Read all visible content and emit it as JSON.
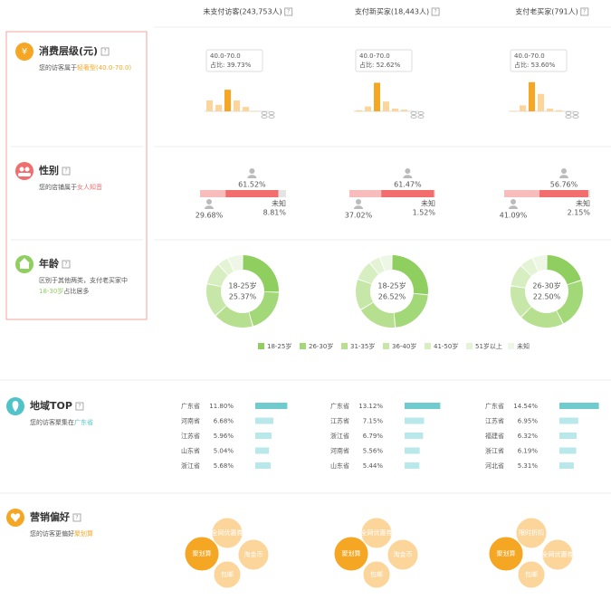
{
  "columns": [
    "未支付访客(243,753人)",
    "支付新买家(18,443人)",
    "支付老买家(791人)"
  ],
  "help": "?",
  "consumption": {
    "icon": "¥",
    "title": "消费层级(元)",
    "desc": "您的访客属于",
    "highlight": "轻奢型(40.0-70.0)",
    "columns": [
      {
        "tooltip_range": "40.0-70.0",
        "tooltip_share": "占比: 39.73%",
        "bars": [
          20,
          12,
          39.73,
          20,
          8,
          1
        ],
        "colors": [
          "#fcd59a",
          "#fcd59a",
          "#f5a623",
          "#fcd59a",
          "#fcd59a",
          "#fcd59a"
        ]
      },
      {
        "tooltip_range": "40.0-70.0",
        "tooltip_share": "占比: 52.62%",
        "bars": [
          2,
          9,
          52.62,
          18,
          5,
          3
        ],
        "colors": [
          "#fcd59a",
          "#fcd59a",
          "#f5a623",
          "#fcd59a",
          "#fcd59a",
          "#fcd59a"
        ]
      },
      {
        "tooltip_range": "40.0-70.0",
        "tooltip_share": "占比: 53.60%",
        "bars": [
          1,
          11,
          53.6,
          32,
          5,
          2
        ],
        "colors": [
          "#fcd59a",
          "#fcd59a",
          "#f5a623",
          "#fcd59a",
          "#fcd59a",
          "#fcd59a"
        ]
      }
    ]
  },
  "gender": {
    "title": "性别",
    "desc": "您的店铺属于",
    "highlight": "女人知音",
    "unknown_label": "未知",
    "columns": [
      {
        "values": [
          29.68,
          61.52,
          8.81
        ],
        "value_labels": [
          "29.68%",
          "61.52%",
          "8.81%"
        ]
      },
      {
        "values": [
          37.02,
          61.47,
          1.52
        ],
        "value_labels": [
          "37.02%",
          "61.47%",
          "1.52%"
        ]
      },
      {
        "values": [
          41.09,
          56.76,
          2.15
        ],
        "value_labels": [
          "41.09%",
          "56.76%",
          "2.15%"
        ]
      }
    ],
    "colors": [
      "#f9bcbc",
      "#f26d6d",
      "#e4e4e4"
    ]
  },
  "age": {
    "title": "年龄",
    "desc": "区别于其他两类，支付老买家中",
    "highlight": "18-30岁",
    "desc_end": "占比居多",
    "legend": [
      "18-25岁",
      "26-30岁",
      "31-35岁",
      "36-40岁",
      "41-50岁",
      "51岁以上",
      "未知"
    ],
    "colors": [
      "#8fcf5f",
      "#a3d878",
      "#b6e08f",
      "#c6e7a8",
      "#d6eec0",
      "#e3f3d4",
      "#eef7e6"
    ],
    "columns": [
      {
        "center_label": "18-25岁",
        "center_value": "25.37%",
        "values": [
          25.37,
          20,
          18,
          15,
          10,
          5,
          6.63
        ]
      },
      {
        "center_label": "18-25岁",
        "center_value": "26.52%",
        "values": [
          26.52,
          22,
          18,
          14,
          9,
          5,
          5.48
        ]
      },
      {
        "center_label": "26-30岁",
        "center_value": "22.50%",
        "values": [
          20,
          22.5,
          20,
          15,
          10,
          6,
          6.5
        ]
      }
    ]
  },
  "region": {
    "title": "地域TOP",
    "desc": "您的访客聚集在",
    "highlight": "广东省",
    "columns": [
      {
        "provinces": [
          "广东省",
          "河南省",
          "江苏省",
          "山东省",
          "浙江省"
        ],
        "values": [
          11.8,
          6.68,
          5.96,
          5.04,
          5.68
        ],
        "value_labels": [
          "11.80%",
          "6.68%",
          "5.96%",
          "5.04%",
          "5.68%"
        ]
      },
      {
        "provinces": [
          "广东省",
          "江苏省",
          "浙江省",
          "河南省",
          "山东省"
        ],
        "values": [
          13.12,
          7.15,
          6.79,
          5.56,
          5.44
        ],
        "value_labels": [
          "13.12%",
          "7.15%",
          "6.79%",
          "5.56%",
          "5.44%"
        ]
      },
      {
        "provinces": [
          "广东省",
          "江苏省",
          "福建省",
          "浙江省",
          "河北省"
        ],
        "values": [
          14.54,
          6.95,
          6.32,
          6.19,
          5.31
        ],
        "value_labels": [
          "14.54%",
          "6.95%",
          "6.32%",
          "6.19%",
          "5.31%"
        ]
      }
    ]
  },
  "marketing": {
    "title": "营销偏好",
    "desc": "您的访客更偏好",
    "highlight": "聚划算",
    "columns": [
      {
        "bubbles": [
          "聚划算",
          "全网优惠券",
          "淘金币",
          "包邮"
        ]
      },
      {
        "bubbles": [
          "聚划算",
          "全网优惠券",
          "淘金币",
          "包邮"
        ]
      },
      {
        "bubbles": [
          "聚划算",
          "限时折扣",
          "全网优惠券",
          "包邮"
        ]
      }
    ]
  }
}
